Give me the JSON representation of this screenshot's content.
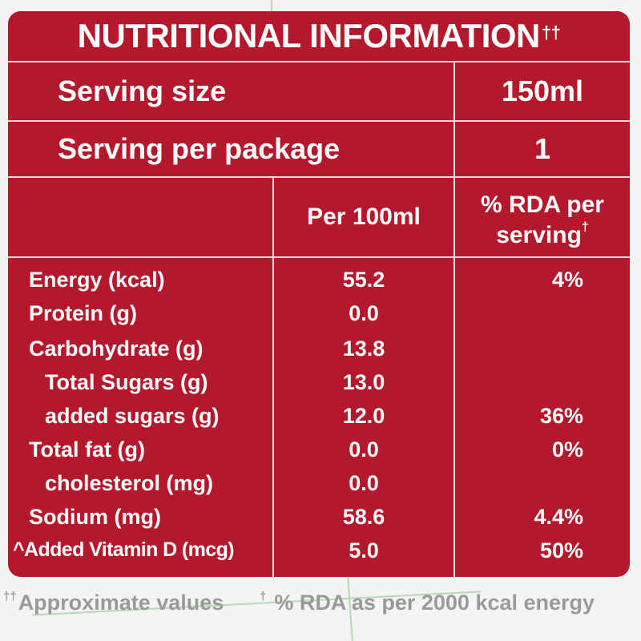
{
  "title": {
    "text": "NUTRITIONAL INFORMATION",
    "marker": "††"
  },
  "serving": {
    "size_label": "Serving size",
    "size_value": "150ml",
    "per_package_label": "Serving per package",
    "per_package_value": "1"
  },
  "columns": {
    "per_100ml": "Per 100ml",
    "rda_line1": "% RDA per",
    "rda_line2": "serving",
    "rda_marker": "†"
  },
  "rows": [
    {
      "label": "Energy (kcal)",
      "per_100ml": "55.2",
      "rda": "4%"
    },
    {
      "label": "Protein (g)",
      "per_100ml": "0.0",
      "rda": ""
    },
    {
      "label": "Carbohydrate (g)",
      "per_100ml": "13.8",
      "rda": ""
    },
    {
      "label": "Total Sugars (g)",
      "per_100ml": "13.0",
      "rda": ""
    },
    {
      "label": "added sugars (g)",
      "per_100ml": "12.0",
      "rda": "36%"
    },
    {
      "label": "Total fat (g)",
      "per_100ml": "0.0",
      "rda": "0%"
    },
    {
      "label": "cholesterol (mg)",
      "per_100ml": "0.0",
      "rda": ""
    },
    {
      "label": "Sodium (mg)",
      "per_100ml": "58.6",
      "rda": "4.4%"
    },
    {
      "label": "^Added Vitamin D (mcg)",
      "per_100ml": "5.0",
      "rda": "50%"
    }
  ],
  "footnotes": {
    "approx_marker": "††",
    "approx_text": "Approximate values",
    "rda_marker": "†",
    "rda_text": "% RDA as per 2000 kcal energy"
  },
  "colors": {
    "label_red": "#b5182c",
    "rule": "#f3d8dc",
    "footnote_gray": "#9a9a9a"
  }
}
